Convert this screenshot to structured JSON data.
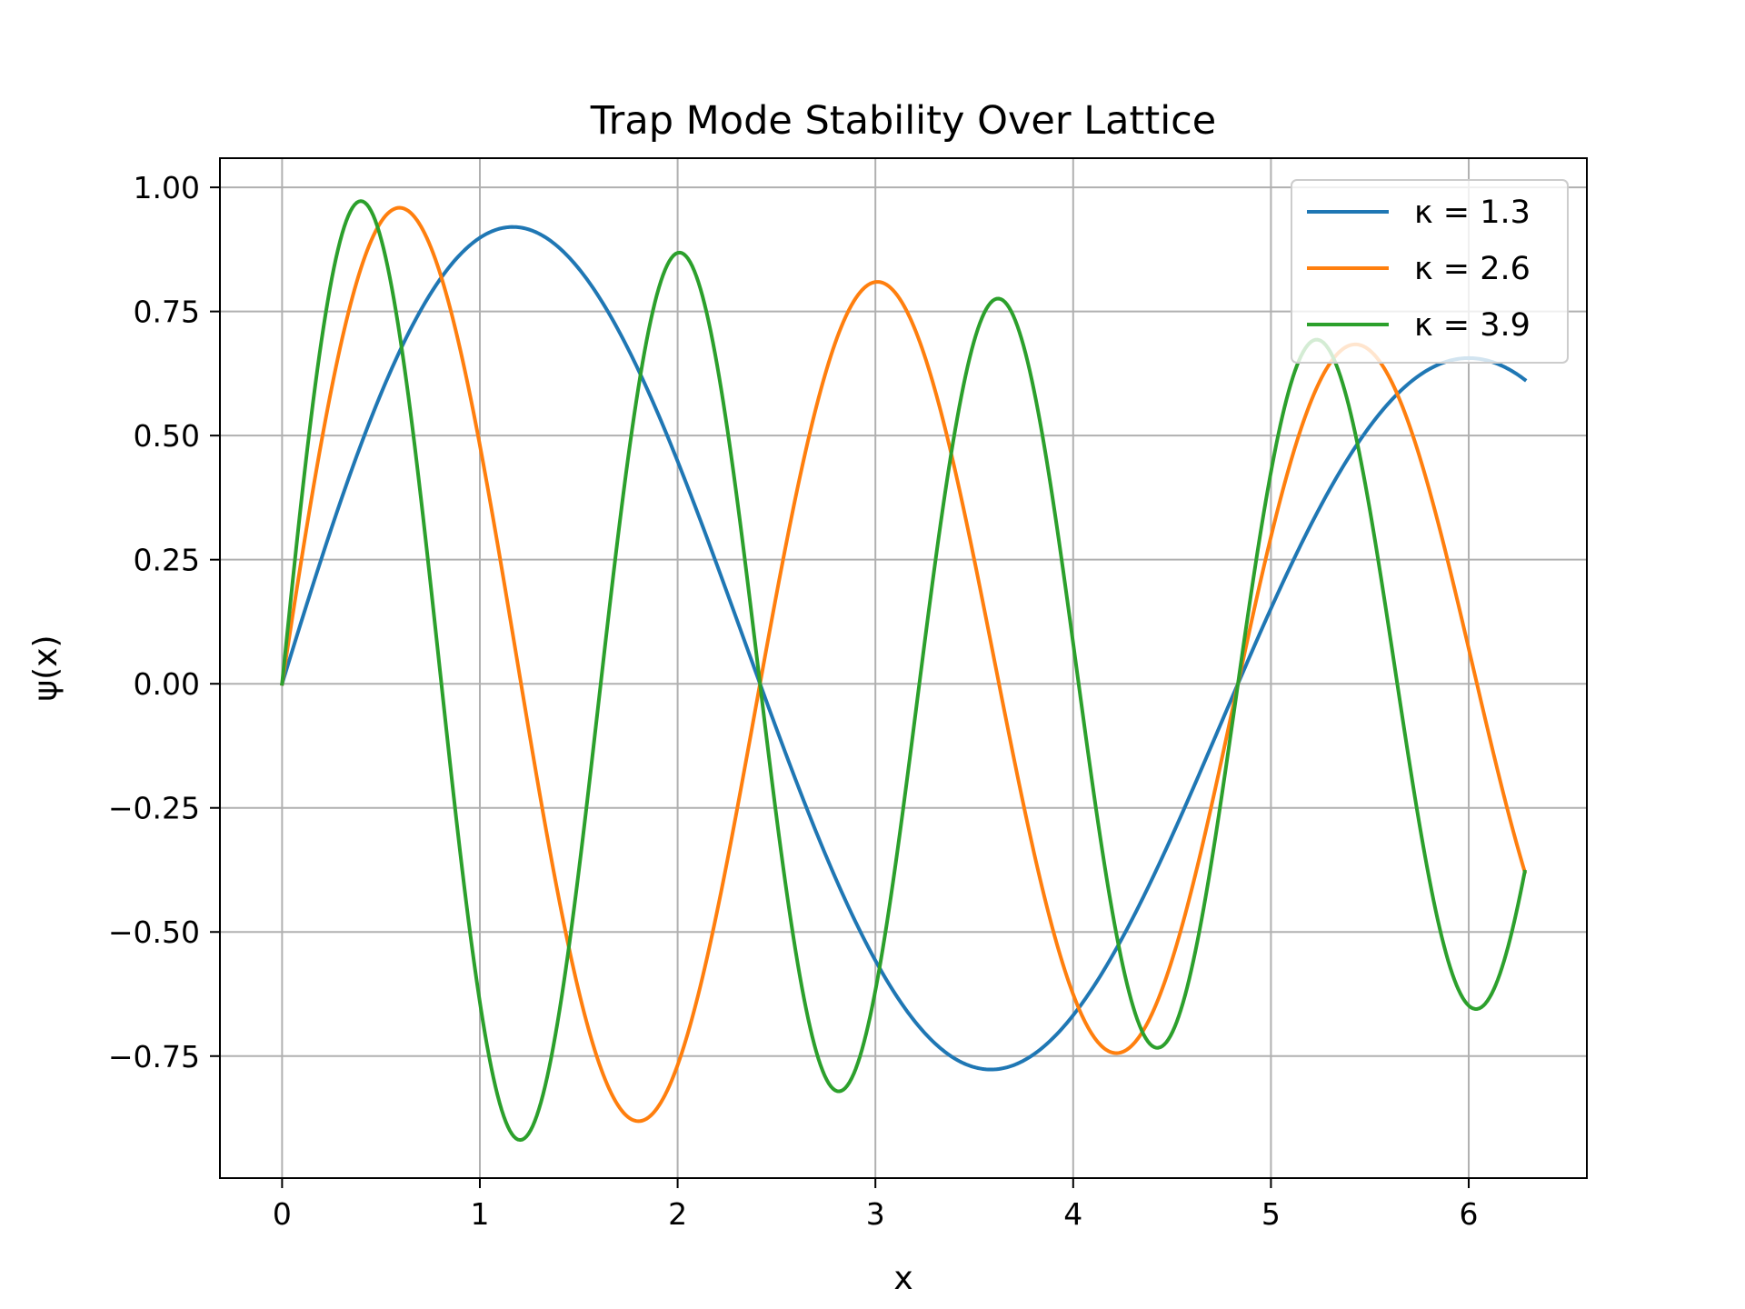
{
  "chart_data": {
    "type": "line",
    "title": "Trap Mode Stability Over Lattice",
    "xlabel": "x",
    "ylabel": "ψ(x)",
    "xlim": [
      -0.3142,
      6.5973
    ],
    "ylim": [
      -0.9958,
      1.0588
    ],
    "grid": true,
    "legend_position": "top-right",
    "x_ticks": [
      0,
      1,
      2,
      3,
      4,
      5,
      6
    ],
    "x_tick_labels": [
      "0",
      "1",
      "2",
      "3",
      "4",
      "5",
      "6"
    ],
    "y_ticks": [
      -0.75,
      -0.5,
      -0.25,
      0,
      0.25,
      0.5,
      0.75,
      1.0
    ],
    "y_tick_labels": [
      "−0.75",
      "−0.50",
      "−0.25",
      "0.00",
      "0.25",
      "0.50",
      "0.75",
      "1.00"
    ],
    "x_range": [
      0,
      6.2832
    ],
    "model": "psi(x) = sin(k*x) * exp(-0.07*x)",
    "series": [
      {
        "name": "κ = 1.3",
        "k": 1.3,
        "color": "#1f77b4"
      },
      {
        "name": "κ = 2.6",
        "k": 2.6,
        "color": "#ff7f0e"
      },
      {
        "name": "κ = 3.9",
        "k": 3.9,
        "color": "#2ca02c"
      }
    ]
  }
}
